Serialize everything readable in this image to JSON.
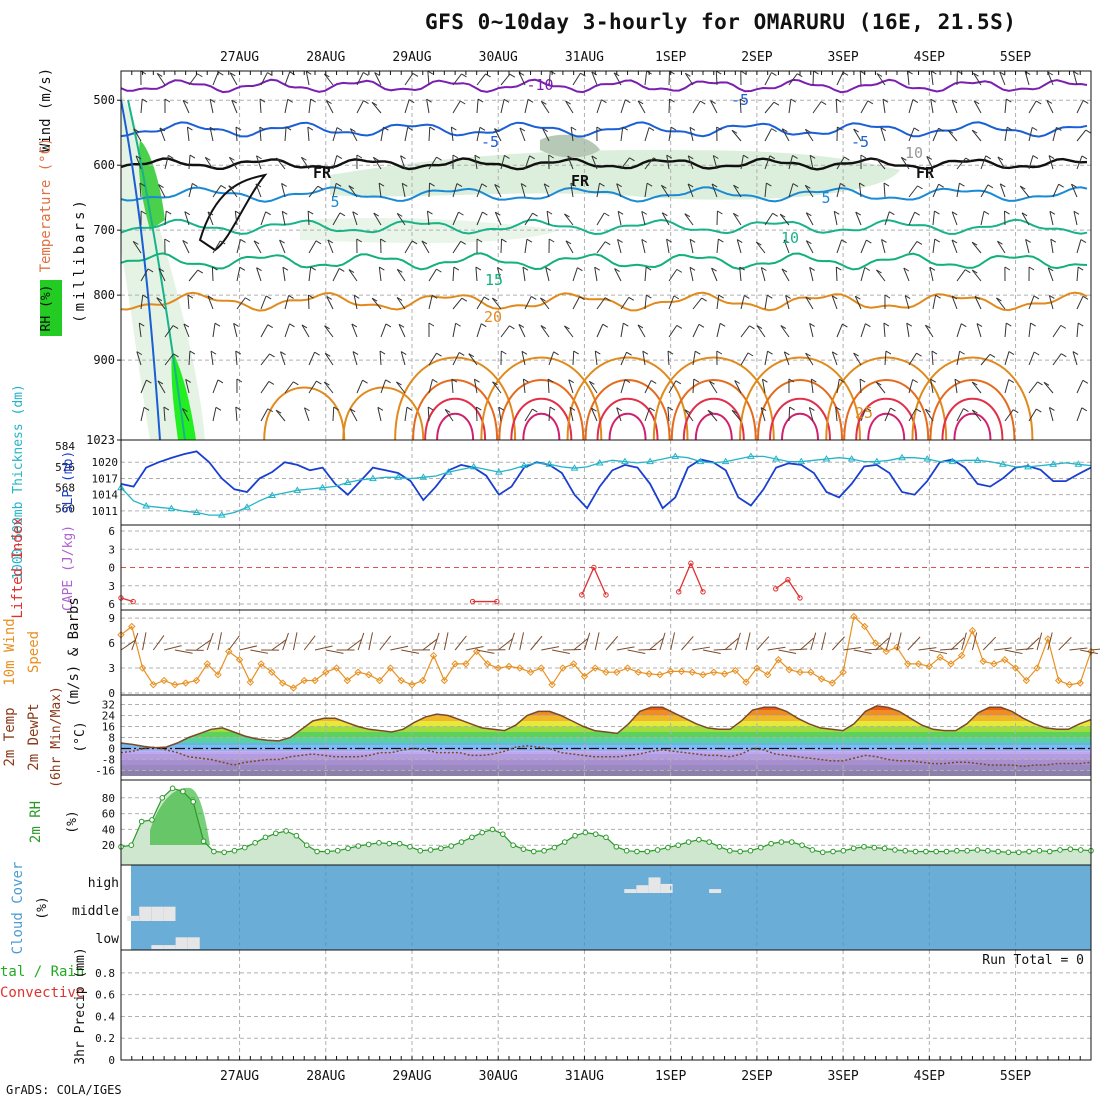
{
  "title": "GFS 0~10day 3-hourly for OMARURU (16E, 21.5S)",
  "footer": "GrADS: COLA/IGES",
  "dates": [
    "27AUG",
    "28AUG",
    "29AUG",
    "30AUG",
    "31AUG",
    "1SEP",
    "2SEP",
    "3SEP",
    "4SEP",
    "5SEP"
  ],
  "colors": {
    "grid": "#b0b0b0",
    "temp_cold": "#7a1fb0",
    "temp_blue": "#1a5fd6",
    "temp_green": "#19b38a",
    "temp_orange": "#e08a1c",
    "temp_red": "#e0304a",
    "freezing": "#111111",
    "rh_green": "#22cc22",
    "slp": "#1a3fd0",
    "thickness": "#22b4c8",
    "lifted_index": "#e03030",
    "wind_speed": "#e89020",
    "barb": "#333333",
    "rh2m": "#2a9a2a",
    "cloud_bg": "#6aadd6",
    "cloud_bar": "#e6e6e6"
  },
  "panels": {
    "upper_air": {
      "ylabel_wind": "Wind (m/s)",
      "ylabel_temp": "Temperature (°C)",
      "ylabel_rh": "RH (%)",
      "ylabel_pressure": "(millibars)",
      "y_ticks": [
        "500",
        "600",
        "700",
        "800",
        "900",
        "1023"
      ],
      "contour_labels": [
        "-10",
        "-5",
        "-5",
        "FR",
        "FR",
        "FR",
        "-5",
        "5",
        "5",
        "10",
        "15",
        "20",
        "25",
        "10"
      ]
    },
    "slp_thickness": {
      "ylabel_thickness": "1000-500mb Thickness (dm)",
      "ylabel_slp": "SLP (mb)",
      "thickness_ticks": [
        "584",
        "576",
        "568",
        "560"
      ],
      "slp_ticks": [
        "1020",
        "1017",
        "1014",
        "1011"
      ]
    },
    "lifted_index": {
      "ylabel_li": "Lifted Index",
      "ylabel_cape": "CAPE (J/kg)",
      "y_ticks": [
        "-6",
        "-3",
        "0",
        "3",
        "6"
      ]
    },
    "wind10m": {
      "ylabel_a": "10m Wind",
      "ylabel_b": "Speed",
      "ylabel_c": "(m/s) & Barbs",
      "y_ticks": [
        "9",
        "6",
        "3",
        "0"
      ]
    },
    "temp2m": {
      "ylabel_a": "2m Temp",
      "ylabel_b": "2m DewPt",
      "ylabel_c": "(6hr Min/Max)",
      "ylabel_unit": "(°C)",
      "y_ticks": [
        "32",
        "24",
        "16",
        "8",
        "0",
        "-8",
        "-16"
      ]
    },
    "rh2m": {
      "ylabel": "2m RH",
      "ylabel_unit": "(%)",
      "y_ticks": [
        "80",
        "60",
        "40",
        "20"
      ]
    },
    "cloud": {
      "ylabel": "Cloud Cover",
      "ylabel_unit": "(%)",
      "levels": [
        "high",
        "middle",
        "low"
      ]
    },
    "precip": {
      "ylabel_a": "Total / Rain",
      "ylabel_b": "Convective",
      "ylabel_c": "3hr Precip (mm)",
      "run_total": "Run Total = 0",
      "y_ticks": [
        "0.8",
        "0.6",
        "0.4",
        "0.2",
        "0"
      ]
    }
  },
  "chart_data": [
    {
      "type": "line",
      "name": "slp_thickness",
      "x_step_hours": 3,
      "series": [
        {
          "name": "SLP (mb)",
          "ylim": [
            1009.5,
            1023
          ],
          "values": [
            1016,
            1015.5,
            1019,
            1020,
            1020.8,
            1021.5,
            1022,
            1020,
            1017,
            1015,
            1014.5,
            1017,
            1018.2,
            1020,
            1019.5,
            1018.5,
            1019,
            1016,
            1014,
            1016.5,
            1019,
            1018.5,
            1018,
            1016.5,
            1013,
            1015.5,
            1018.5,
            1019.5,
            1019,
            1017.5,
            1014,
            1015.5,
            1019,
            1020,
            1019.5,
            1018,
            1014,
            1011.5,
            1015.5,
            1018.5,
            1019.5,
            1019,
            1016,
            1011.5,
            1013.5,
            1019,
            1020.5,
            1020,
            1018.5,
            1013.5,
            1012,
            1015,
            1019,
            1019.8,
            1019.5,
            1018,
            1014.5,
            1013.5,
            1016,
            1019.2,
            1019.5,
            1018,
            1014.5,
            1014,
            1016.5,
            1020,
            1020.5,
            1019,
            1016,
            1015.5,
            1017,
            1019,
            1019.3,
            1018.6,
            1016.5,
            1016.5,
            1017.8,
            1019
          ]
        },
        {
          "name": "1000-500mb Thickness (dm)",
          "ylim": [
            556,
            584
          ],
          "values": [
            568,
            563,
            561,
            560.5,
            560,
            559,
            558.5,
            557.5,
            557.5,
            558.5,
            560.5,
            563,
            565,
            566,
            567,
            567.5,
            568,
            568.5,
            570,
            571,
            571.5,
            572,
            572,
            571.5,
            572,
            572.5,
            574,
            575,
            576,
            575,
            574,
            575,
            576.5,
            577.5,
            577,
            576,
            575.5,
            576,
            577.5,
            578.5,
            578,
            577.5,
            578,
            579,
            580,
            579.5,
            578,
            577.5,
            578,
            579,
            580,
            580,
            579,
            578,
            578,
            578.5,
            579,
            579.5,
            579,
            578,
            578,
            578.5,
            579.5,
            579.5,
            579,
            578,
            578,
            578.5,
            578.5,
            578,
            577,
            576,
            576,
            576.5,
            577,
            577.5,
            577,
            576.5
          ]
        }
      ]
    },
    {
      "type": "line",
      "name": "lifted_index",
      "ylim": [
        6,
        -6
      ],
      "series": [
        {
          "name": "Lifted Index",
          "points": [
            [
              0,
              5
            ],
            [
              1,
              5.6
            ],
            [
              29,
              5.6
            ],
            [
              31,
              5.6
            ],
            [
              38,
              4.5
            ],
            [
              39,
              0
            ],
            [
              40,
              4.5
            ],
            [
              46,
              4
            ],
            [
              47,
              -0.7
            ],
            [
              48,
              4
            ],
            [
              54,
              3.5
            ],
            [
              55,
              2
            ],
            [
              56,
              5
            ]
          ]
        }
      ]
    },
    {
      "type": "line",
      "name": "wind10m_speed",
      "ylim": [
        0,
        9.5
      ],
      "values": [
        7,
        8,
        3,
        1,
        1.5,
        1,
        1.2,
        1.5,
        3.5,
        2.2,
        5,
        4,
        1.3,
        3.5,
        2.5,
        1.2,
        0.6,
        1.5,
        1.5,
        2.5,
        3,
        1.5,
        2.5,
        2.2,
        1.5,
        3,
        1.5,
        1,
        1.5,
        4.5,
        1.5,
        3.5,
        3.5,
        5,
        3.5,
        3,
        3.2,
        3,
        2.5,
        3,
        1,
        3,
        3.5,
        2,
        3,
        2.5,
        2.5,
        3,
        2.5,
        2.3,
        2.2,
        2.6,
        2.6,
        2.5,
        2.2,
        2.5,
        2.3,
        2.7,
        1.3,
        3,
        2.2,
        4,
        2.8,
        2.5,
        2.5,
        1.7,
        1.2,
        2.5,
        9.2,
        8,
        6,
        5,
        5.5,
        3.5,
        3.5,
        3.2,
        4.3,
        3.5,
        4.5,
        7.5,
        3.8,
        3.5,
        4,
        3,
        1.5,
        3,
        6.5,
        1.5,
        1,
        1.2,
        5
      ]
    },
    {
      "type": "area",
      "name": "temp2m",
      "ylim": [
        -20,
        36
      ],
      "series": [
        {
          "name": "2m Temp",
          "values": [
            4,
            3,
            1.5,
            0.5,
            1,
            4,
            8,
            11,
            14,
            15,
            12,
            9,
            7,
            6,
            5.5,
            8,
            14,
            20,
            22,
            22,
            19,
            16,
            14,
            13,
            12,
            14,
            19,
            23,
            25,
            24,
            21,
            18,
            15,
            14,
            13,
            17,
            24,
            27,
            27,
            24,
            20,
            16,
            13,
            12,
            11,
            18,
            27,
            30,
            30,
            26,
            22,
            18,
            15,
            14,
            14,
            20,
            28,
            30,
            30,
            27,
            22,
            18,
            15,
            14,
            13,
            18,
            27,
            31,
            30,
            27,
            22,
            17,
            14,
            13,
            13,
            18,
            26,
            30,
            30,
            27,
            22,
            18,
            15,
            14,
            14,
            18,
            21
          ]
        },
        {
          "name": "2m DewPt",
          "values": [
            -3,
            -2,
            0,
            1,
            -1,
            -3,
            -6,
            -7,
            -8,
            -10,
            -12,
            -10,
            -9,
            -8,
            -8,
            -6,
            -5,
            -4,
            -5,
            -6,
            -6,
            -6,
            -5,
            -3,
            -3,
            -1,
            0,
            -1,
            -3,
            -3,
            -3,
            -5,
            -5,
            -4,
            -2,
            1,
            2,
            1,
            0,
            -3,
            -4,
            -5,
            -6,
            -6,
            -6,
            -5,
            -4,
            -2,
            -1,
            -2,
            -3,
            -4,
            -5,
            -5,
            -6,
            -4,
            0,
            -1,
            -4,
            -5,
            -6,
            -7,
            -8,
            -9,
            -9,
            -7,
            -5,
            -6,
            -8,
            -9,
            -9,
            -10,
            -11,
            -11,
            -10,
            -10,
            -11,
            -12,
            -12,
            -12,
            -13,
            -12,
            -12,
            -11,
            -11,
            -11,
            -10
          ]
        }
      ]
    },
    {
      "type": "area",
      "name": "rh2m",
      "ylim": [
        0,
        100
      ],
      "values": [
        18,
        20,
        50,
        52,
        80,
        92,
        88,
        75,
        25,
        12,
        11,
        13,
        17,
        23,
        30,
        35,
        38,
        32,
        20,
        12,
        12,
        13,
        16,
        19,
        21,
        23,
        22,
        22,
        18,
        13,
        14,
        16,
        19,
        24,
        30,
        36,
        40,
        34,
        20,
        15,
        12,
        13,
        17,
        24,
        32,
        36,
        34,
        30,
        18,
        13,
        12,
        12,
        14,
        17,
        20,
        24,
        27,
        24,
        18,
        13,
        12,
        13,
        17,
        22,
        24,
        24,
        20,
        14,
        11,
        12,
        13,
        16,
        18,
        17,
        16,
        14,
        13,
        12,
        12,
        12,
        12,
        13,
        13,
        14,
        13,
        12,
        11,
        11,
        12,
        13,
        12,
        14,
        15,
        14,
        13
      ]
    },
    {
      "type": "bar",
      "name": "cloud_cover",
      "levels": [
        "high",
        "middle",
        "low"
      ],
      "ylim": [
        0,
        100
      ],
      "series": [
        {
          "name": "middle",
          "bars": [
            [
              1,
              20
            ],
            [
              2,
              55
            ],
            [
              3,
              55
            ],
            [
              4,
              55
            ]
          ]
        },
        {
          "name": "low",
          "bars": [
            [
              3,
              15
            ],
            [
              4,
              15
            ],
            [
              5,
              45
            ],
            [
              6,
              45
            ]
          ]
        },
        {
          "name": "high",
          "bars": [
            [
              42,
              15
            ],
            [
              43,
              30
            ],
            [
              44,
              60
            ],
            [
              45,
              35
            ],
            [
              49,
              15
            ]
          ]
        }
      ]
    },
    {
      "type": "line",
      "name": "precip",
      "ylim": [
        0,
        0.9
      ],
      "series": [
        {
          "name": "Total / Rain",
          "values": []
        }
      ]
    }
  ]
}
